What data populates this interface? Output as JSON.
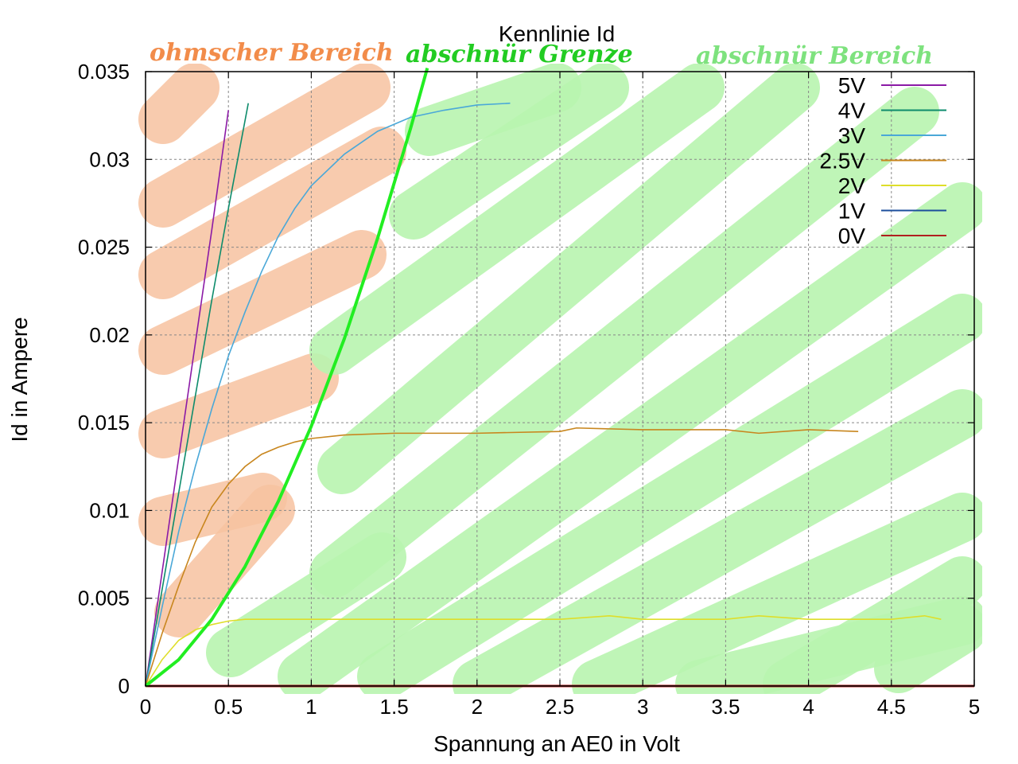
{
  "chart_data": {
    "type": "line",
    "title": "Kennlinie Id",
    "xlabel": "Spannung an AE0 in Volt",
    "ylabel": "Id in Ampere",
    "xlim": [
      0,
      5
    ],
    "ylim": [
      0,
      0.035
    ],
    "xticks": [
      "0",
      "0.5",
      "1",
      "1.5",
      "2",
      "2.5",
      "3",
      "3.5",
      "4",
      "4.5",
      "5"
    ],
    "yticks": [
      "0",
      "0.005",
      "0.01",
      "0.015",
      "0.02",
      "0.025",
      "0.03",
      "0.035"
    ],
    "grid": true,
    "legend_position": "top-right",
    "annotations": {
      "ohmic": "ohmscher Bereich",
      "boundary": "abschnür Grenze",
      "saturation": "abschnür Bereich"
    },
    "annotation_colors": {
      "ohmic": "#f28c4a",
      "boundary": "#22cc22",
      "saturation": "#7ee27e",
      "ohmic_hatch": "#f7c3a0",
      "saturation_hatch": "#b9f5b0"
    },
    "boundary_curve": {
      "color": "#22ee22",
      "x": [
        0,
        0.2,
        0.4,
        0.6,
        0.8,
        1.0,
        1.2,
        1.4,
        1.6,
        1.7
      ],
      "y": [
        0,
        0.0015,
        0.0038,
        0.0068,
        0.0105,
        0.0148,
        0.0198,
        0.0255,
        0.0318,
        0.0352
      ]
    },
    "series": [
      {
        "name": "5V",
        "color": "#8b1aa6",
        "x": [
          0,
          0.1,
          0.2,
          0.3,
          0.4,
          0.5
        ],
        "y": [
          0,
          0.0065,
          0.013,
          0.0195,
          0.026,
          0.0328
        ]
      },
      {
        "name": "4V",
        "color": "#0e8c6c",
        "x": [
          0,
          0.1,
          0.2,
          0.3,
          0.4,
          0.5,
          0.62
        ],
        "y": [
          0,
          0.0055,
          0.011,
          0.0165,
          0.022,
          0.0272,
          0.0332
        ]
      },
      {
        "name": "3V",
        "color": "#4aa8d8",
        "x": [
          0,
          0.1,
          0.2,
          0.3,
          0.4,
          0.5,
          0.6,
          0.7,
          0.8,
          0.9,
          1.0,
          1.2,
          1.4,
          1.6,
          1.8,
          2.0,
          2.2
        ],
        "y": [
          0,
          0.0045,
          0.0088,
          0.0125,
          0.0158,
          0.0188,
          0.0213,
          0.0236,
          0.0256,
          0.0272,
          0.0285,
          0.0303,
          0.0316,
          0.0324,
          0.0328,
          0.0331,
          0.0332
        ]
      },
      {
        "name": "2.5V",
        "color": "#c8861e",
        "x": [
          0,
          0.1,
          0.2,
          0.3,
          0.4,
          0.5,
          0.6,
          0.7,
          0.8,
          0.9,
          1.0,
          1.2,
          1.5,
          2.0,
          2.5,
          2.6,
          3.0,
          3.5,
          3.7,
          4.0,
          4.3
        ],
        "y": [
          0,
          0.003,
          0.0057,
          0.0082,
          0.0102,
          0.0115,
          0.0125,
          0.0132,
          0.0136,
          0.0139,
          0.0141,
          0.0143,
          0.0144,
          0.0144,
          0.0145,
          0.0147,
          0.0146,
          0.0146,
          0.0144,
          0.0146,
          0.0145
        ]
      },
      {
        "name": "2V",
        "color": "#dede2a",
        "x": [
          0,
          0.1,
          0.2,
          0.3,
          0.4,
          0.5,
          0.6,
          1.0,
          1.5,
          2.0,
          2.5,
          2.8,
          3.0,
          3.5,
          3.7,
          4.0,
          4.5,
          4.7,
          4.8
        ],
        "y": [
          0,
          0.0015,
          0.0026,
          0.0032,
          0.0035,
          0.0037,
          0.0038,
          0.0038,
          0.0038,
          0.0038,
          0.0038,
          0.004,
          0.0038,
          0.0038,
          0.004,
          0.0038,
          0.0038,
          0.004,
          0.0038
        ]
      },
      {
        "name": "1V",
        "color": "#1c4f9c",
        "x": [
          0,
          5
        ],
        "y": [
          0,
          0
        ]
      },
      {
        "name": "0V",
        "color": "#b02020",
        "x": [
          0,
          5
        ],
        "y": [
          0,
          0
        ]
      }
    ]
  }
}
